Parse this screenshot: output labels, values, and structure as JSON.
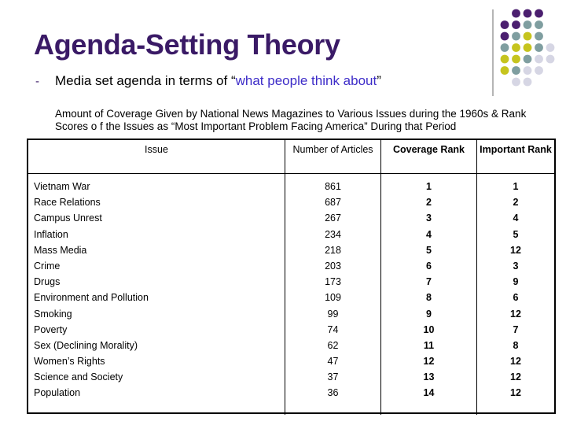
{
  "slide": {
    "title": "Agenda-Setting Theory",
    "bullet": {
      "dash": "-",
      "text_before": "Media set agenda in terms of “",
      "text_accent": "what people think about",
      "text_after": "”"
    },
    "description": "Amount of Coverage Given by National News Magazines to Various Issues during the 1960s & Rank Scores o f the Issues as “Most Important Problem Facing America” During that Period"
  },
  "colors": {
    "title": "#3a1a66",
    "accent_text": "#3d2cc8",
    "dot_purple": "#4b1f6f",
    "dot_teal": "#7f9ea0",
    "dot_yellow": "#c6c41e",
    "dot_lavender": "#d6d6e4"
  },
  "table": {
    "headers": [
      "Issue",
      "Number of Articles",
      "Coverage Rank",
      "Important Rank"
    ],
    "issues": [
      "Vietnam War",
      "Race Relations",
      "Campus Unrest",
      "Inflation",
      "Mass Media",
      "Crime",
      "Drugs",
      "Environment and Pollution",
      "Smoking",
      "Poverty",
      "Sex (Declining Morality)",
      "Women’s Rights",
      "Science and Society",
      "Population"
    ],
    "articles": [
      "861",
      "687",
      "267",
      "234",
      "218",
      "203",
      "173",
      "109",
      "99",
      "74",
      "62",
      "47",
      "37",
      "36"
    ],
    "coverage_rank": [
      "1",
      "2",
      "3",
      "4",
      "5",
      "6",
      "7",
      "8",
      "9",
      "10",
      "11",
      "12",
      "13",
      "14"
    ],
    "important_rank": [
      "1",
      "2",
      "4",
      "5",
      "12",
      "3",
      "9",
      "6",
      "12",
      "7",
      "8",
      "12",
      "12",
      "12"
    ]
  }
}
